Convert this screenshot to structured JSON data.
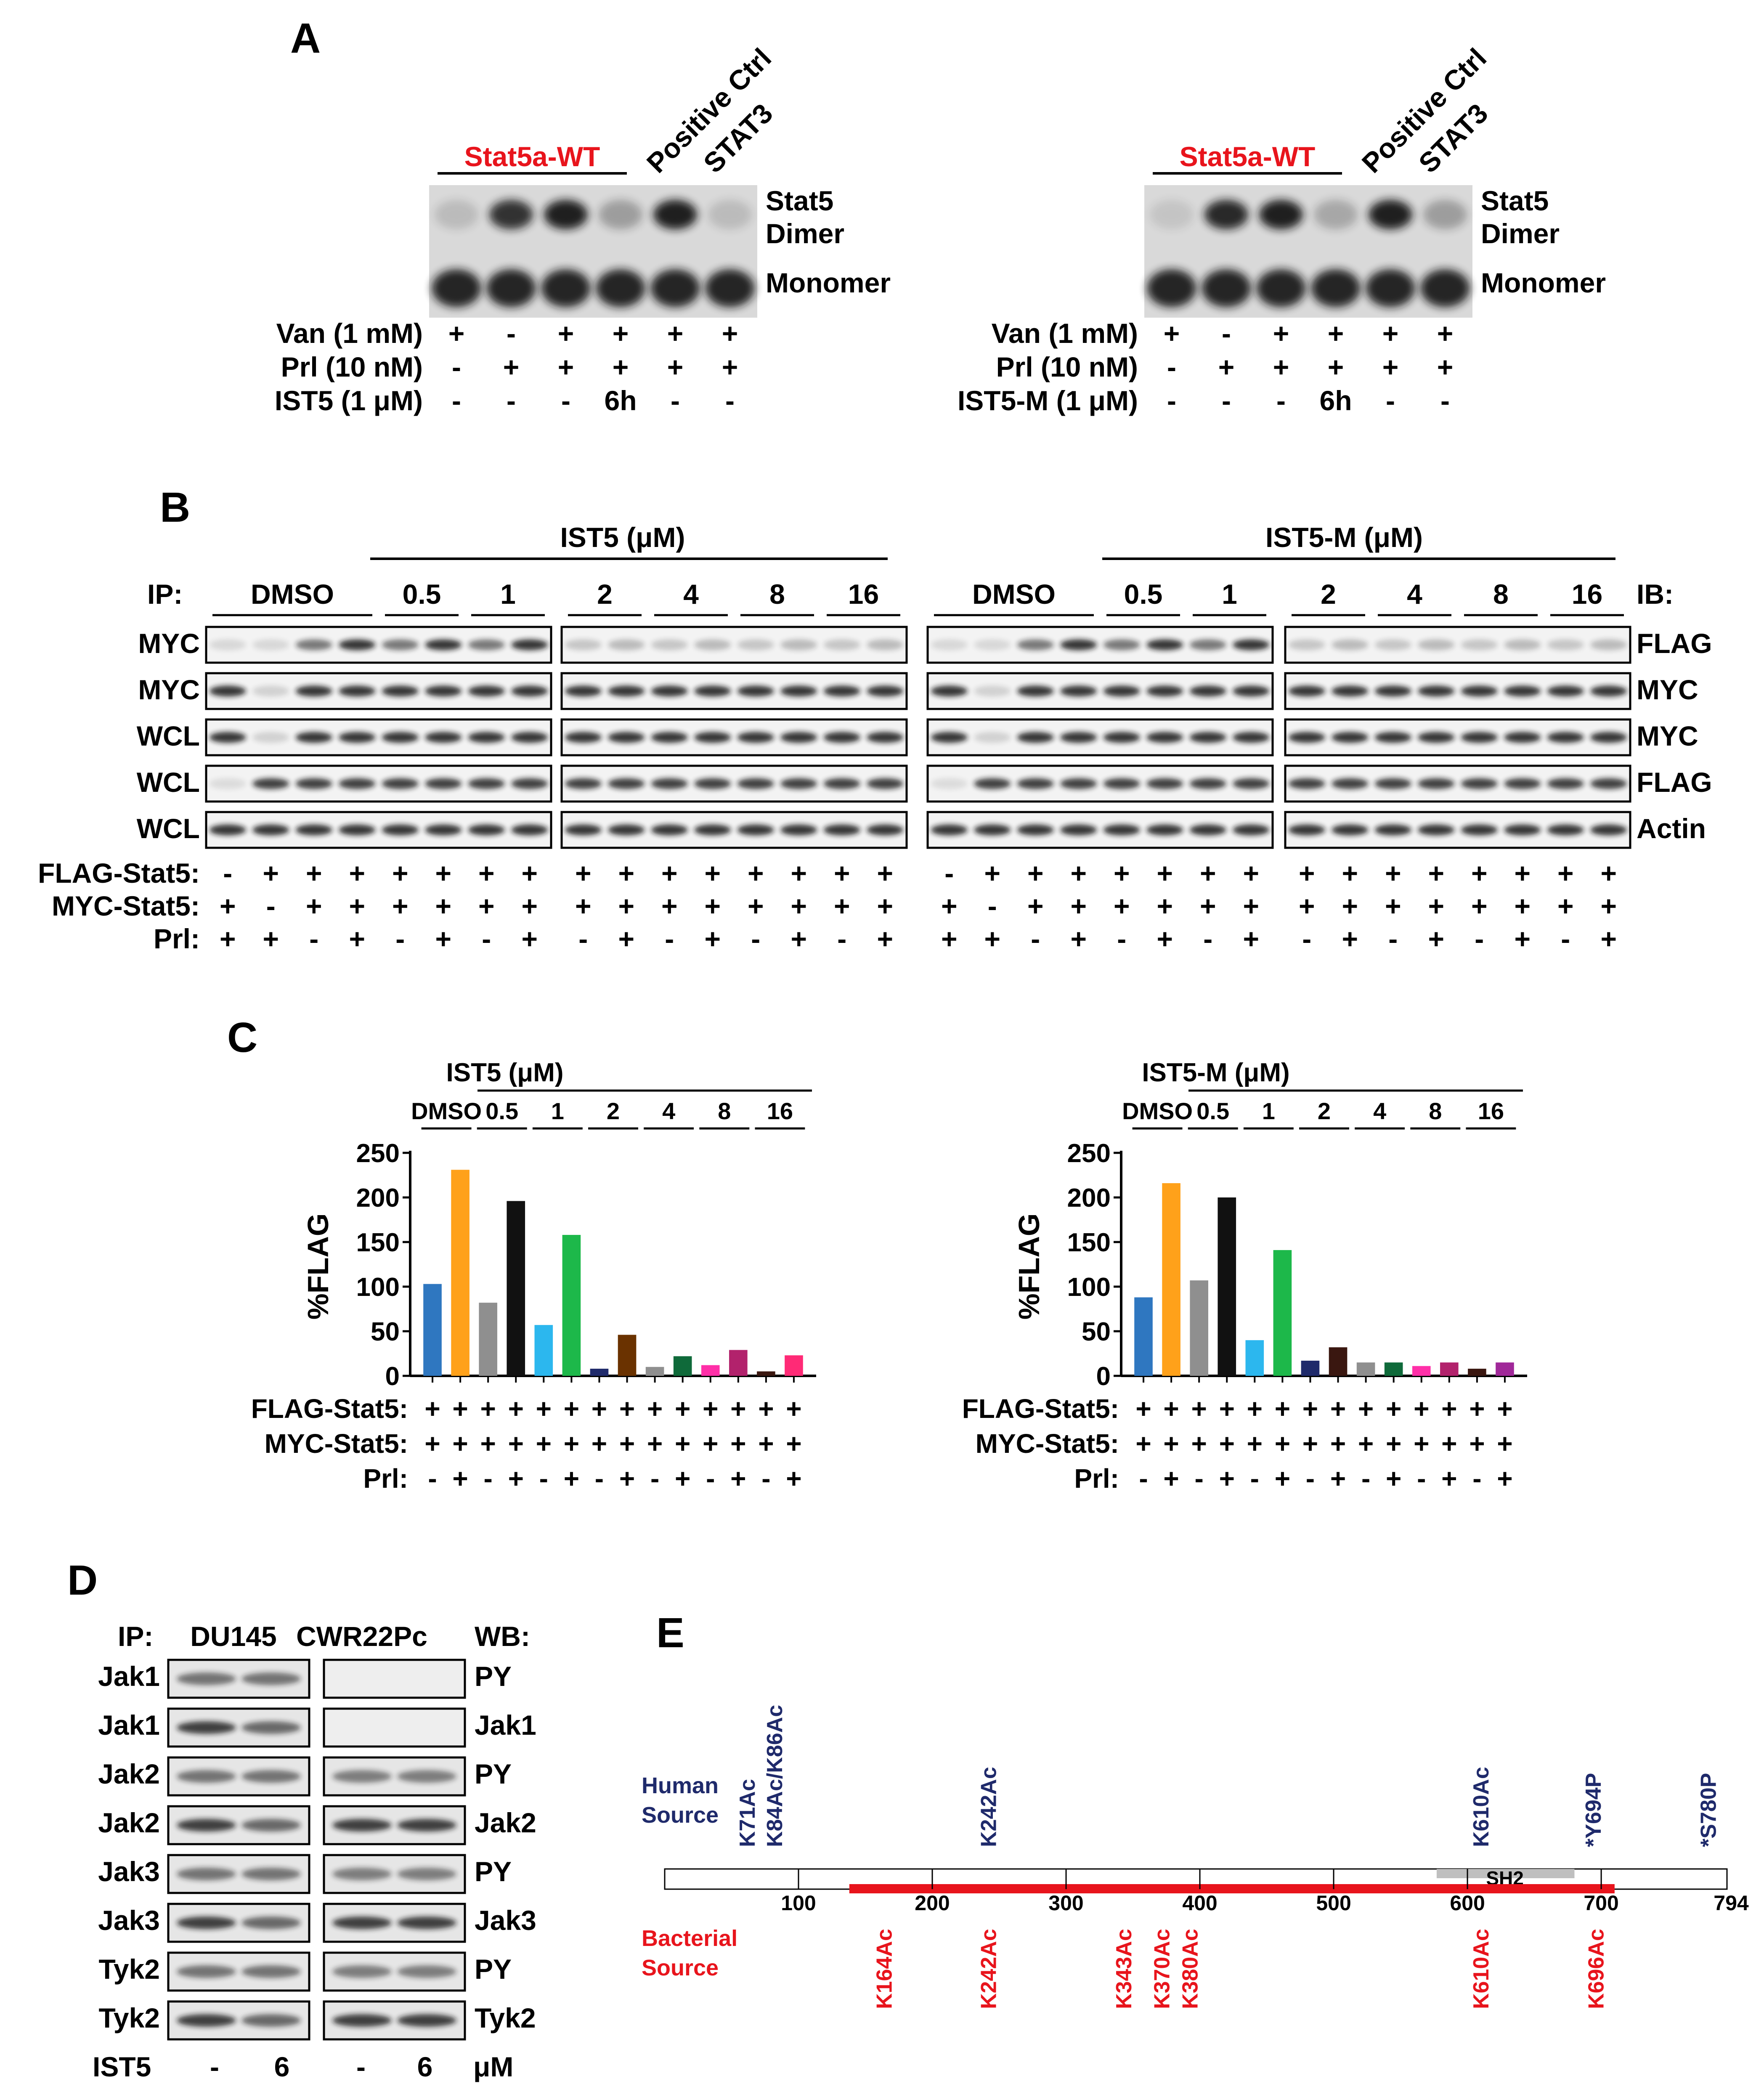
{
  "colors": {
    "red": "#e8141c",
    "navy": "#1f2a6b",
    "bar_palette": [
      "#2f77c0",
      "#ffa11a",
      "#8f8f8f",
      "#111111",
      "#2cb7ee",
      "#1db84a",
      "#1f2a6b",
      "#6a3200",
      "#8f8f8f",
      "#0f6a3a",
      "#ff2fa8",
      "#b2226c",
      "#3a1710",
      "#ff2a76"
    ],
    "bar_palette_m": [
      "#2f77c0",
      "#ffa11a",
      "#8f8f8f",
      "#111111",
      "#2cb7ee",
      "#1db84a",
      "#1f2a6b",
      "#3a1710",
      "#8f8f8f",
      "#0f6a3a",
      "#ff2fa8",
      "#b2226c",
      "#3a1710",
      "#a02899"
    ]
  },
  "panel_labels": [
    "A",
    "B",
    "C",
    "D",
    "E"
  ],
  "panelA": {
    "left": {
      "group_label": "Stat5a-WT",
      "extra_headers": [
        "Positive Ctrl",
        "STAT3"
      ],
      "band_labels": [
        "Stat5",
        "Dimer",
        "Monomer"
      ],
      "rows": [
        {
          "label": "Van (1 mM)",
          "values": [
            "+",
            "-",
            "+",
            "+",
            "+",
            "+"
          ]
        },
        {
          "label": "Prl (10 nM)",
          "values": [
            "-",
            "+",
            "+",
            "+",
            "+",
            "+"
          ]
        },
        {
          "label": "IST5 (1 μM)",
          "values": [
            "-",
            "-",
            "-",
            "6h",
            "-",
            "-"
          ]
        }
      ]
    },
    "right": {
      "group_label": "Stat5a-WT",
      "extra_headers": [
        "Positive Ctrl",
        "STAT3"
      ],
      "band_labels": [
        "Stat5",
        "Dimer",
        "Monomer"
      ],
      "rows": [
        {
          "label": "Van (1 mM)",
          "values": [
            "+",
            "-",
            "+",
            "+",
            "+",
            "+"
          ]
        },
        {
          "label": "Prl (10 nM)",
          "values": [
            "-",
            "+",
            "+",
            "+",
            "+",
            "+"
          ]
        },
        {
          "label": "IST5-M (1 μM)",
          "values": [
            "-",
            "-",
            "-",
            "6h",
            "-",
            "-"
          ]
        }
      ]
    }
  },
  "panelB": {
    "ip_label": "IP:",
    "ib_label": "IB:",
    "left_title": "IST5 (μM)",
    "right_title": "IST5-M (μM)",
    "doses": [
      "DMSO",
      "0.5",
      "1",
      "2",
      "4",
      "8",
      "16"
    ],
    "row_labels_left": [
      "MYC",
      "MYC",
      "WCL",
      "WCL",
      "WCL"
    ],
    "row_labels_right": [
      "FLAG",
      "MYC",
      "MYC",
      "FLAG",
      "Actin"
    ],
    "treatment_labels": [
      "FLAG-Stat5:",
      "MYC-Stat5:",
      "Prl:"
    ],
    "treatments_block1": [
      [
        "-",
        "+",
        "+",
        "+",
        "+",
        "+",
        "+",
        "+"
      ],
      [
        "+",
        "-",
        "+",
        "+",
        "+",
        "+",
        "+",
        "+"
      ],
      [
        "+",
        "+",
        "-",
        "+",
        "-",
        "+",
        "-",
        "+"
      ]
    ],
    "treatments_block2": [
      [
        "+",
        "+",
        "+",
        "+",
        "+",
        "+",
        "+",
        "+"
      ],
      [
        "+",
        "+",
        "+",
        "+",
        "+",
        "+",
        "+",
        "+"
      ],
      [
        "-",
        "+",
        "-",
        "+",
        "-",
        "+",
        "-",
        "+"
      ]
    ]
  },
  "panelC": {
    "left_title": "IST5 (μM)",
    "right_title": "IST5-M (μM)",
    "doses": [
      "DMSO",
      "0.5",
      "1",
      "2",
      "4",
      "8",
      "16"
    ],
    "treatment_labels": [
      "FLAG-Stat5:",
      "MYC-Stat5:",
      "Prl:"
    ],
    "treatments": [
      [
        "+",
        "+",
        "+",
        "+",
        "+",
        "+",
        "+",
        "+",
        "+",
        "+",
        "+",
        "+",
        "+",
        "+"
      ],
      [
        "+",
        "+",
        "+",
        "+",
        "+",
        "+",
        "+",
        "+",
        "+",
        "+",
        "+",
        "+",
        "+",
        "+"
      ],
      [
        "-",
        "+",
        "-",
        "+",
        "-",
        "+",
        "-",
        "+",
        "-",
        "+",
        "-",
        "+",
        "-",
        "+"
      ]
    ]
  },
  "chart_data": [
    {
      "type": "bar",
      "title": "IST5 (μM)",
      "ylabel": "%FLAG",
      "xlabel": "",
      "ylim": [
        0,
        250
      ],
      "yticks": [
        0,
        50,
        100,
        150,
        200,
        250
      ],
      "categories": [
        "DMSO -",
        "DMSO +",
        "0.5 -",
        "0.5 +",
        "1 -",
        "1 +",
        "2 -",
        "2 +",
        "4 -",
        "4 +",
        "8 -",
        "8 +",
        "16 -",
        "16 +"
      ],
      "values": [
        103,
        231,
        82,
        196,
        57,
        158,
        8,
        46,
        10,
        22,
        12,
        29,
        5,
        23
      ]
    },
    {
      "type": "bar",
      "title": "IST5-M (μM)",
      "ylabel": "%FLAG",
      "xlabel": "",
      "ylim": [
        0,
        250
      ],
      "yticks": [
        0,
        50,
        100,
        150,
        200,
        250
      ],
      "categories": [
        "DMSO -",
        "DMSO +",
        "0.5 -",
        "0.5 +",
        "1 -",
        "1 +",
        "2 -",
        "2 +",
        "4 -",
        "4 +",
        "8 -",
        "8 +",
        "16 -",
        "16 +"
      ],
      "values": [
        88,
        216,
        107,
        200,
        40,
        141,
        17,
        32,
        15,
        15,
        11,
        15,
        8,
        15
      ]
    }
  ],
  "panelD": {
    "ip_label": "IP:",
    "wb_label": "WB:",
    "cell_lines": [
      "DU145",
      "CWR22Pc"
    ],
    "row_labels_left": [
      "Jak1",
      "Jak1",
      "Jak2",
      "Jak2",
      "Jak3",
      "Jak3",
      "Tyk2",
      "Tyk2"
    ],
    "row_labels_right": [
      "PY",
      "Jak1",
      "PY",
      "Jak2",
      "PY",
      "Jak3",
      "PY",
      "Tyk2"
    ],
    "ist5_label": "IST5",
    "ist5_values": [
      "-",
      "6",
      "-",
      "6"
    ],
    "unit": "μM"
  },
  "panelE": {
    "human_label_1": "Human",
    "human_label_2": "Source",
    "bacterial_label_1": "Bacterial",
    "bacterial_label_2": "Source",
    "domain_label": "SH2",
    "axis_end": "794",
    "ticks": [
      "100",
      "200",
      "300",
      "400",
      "500",
      "600",
      "700"
    ],
    "human_sites": [
      "K71Ac",
      "K84Ac/K86Ac",
      "K242Ac",
      "K610Ac",
      "*Y694P",
      "*S780P"
    ],
    "bacterial_sites": [
      "K164Ac",
      "K242Ac",
      "K343Ac",
      "K370Ac",
      "K380Ac",
      "K610Ac",
      "K696Ac"
    ]
  }
}
